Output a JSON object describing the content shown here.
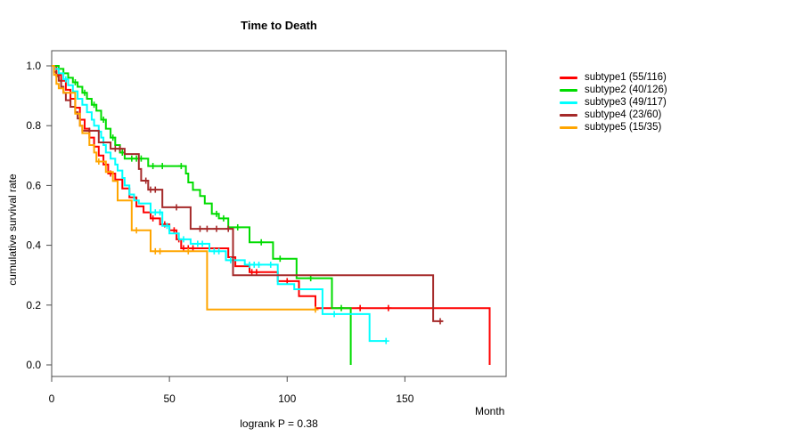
{
  "title": "Time to Death",
  "axes": {
    "ylabel": "cumulative survival rate",
    "xlabel": "Month"
  },
  "annotation": "logrank P = 0.38",
  "chart_data": {
    "type": "line",
    "variant": "kaplan-meier-step",
    "title": "Time to Death",
    "xlabel": "Month",
    "ylabel": "cumulative survival rate",
    "xlim": [
      0,
      193
    ],
    "ylim": [
      0.0,
      1.0
    ],
    "xticks": [
      "0",
      "50",
      "100",
      "150"
    ],
    "yticks": [
      "0.0",
      "0.2",
      "0.4",
      "0.6",
      "0.8",
      "1.0"
    ],
    "grid": false,
    "legend_position": "right",
    "annotation": "logrank P = 0.38",
    "series": [
      {
        "name": "subtype1 (55/116)",
        "color": "#FF0000",
        "end": 186,
        "steps": [
          [
            0,
            1.0
          ],
          [
            2,
            0.97
          ],
          [
            4,
            0.95
          ],
          [
            6,
            0.92
          ],
          [
            8,
            0.89
          ],
          [
            10,
            0.86
          ],
          [
            12,
            0.82
          ],
          [
            14,
            0.79
          ],
          [
            16,
            0.76
          ],
          [
            18,
            0.73
          ],
          [
            20,
            0.7
          ],
          [
            22,
            0.67
          ],
          [
            24,
            0.64
          ],
          [
            27,
            0.62
          ],
          [
            30,
            0.59
          ],
          [
            33,
            0.56
          ],
          [
            36,
            0.53
          ],
          [
            39,
            0.51
          ],
          [
            42,
            0.49
          ],
          [
            46,
            0.47
          ],
          [
            50,
            0.45
          ],
          [
            53,
            0.42
          ],
          [
            55,
            0.39
          ],
          [
            75,
            0.36
          ],
          [
            78,
            0.33
          ],
          [
            84,
            0.31
          ],
          [
            96,
            0.28
          ],
          [
            105,
            0.23
          ],
          [
            112,
            0.19
          ],
          [
            186,
            0.0
          ]
        ],
        "censors": [
          [
            25,
            0.64
          ],
          [
            43,
            0.49
          ],
          [
            48,
            0.47
          ],
          [
            52,
            0.45
          ],
          [
            54,
            0.42
          ],
          [
            56,
            0.39
          ],
          [
            58,
            0.39
          ],
          [
            60,
            0.39
          ],
          [
            85,
            0.31
          ],
          [
            87,
            0.31
          ],
          [
            100,
            0.28
          ],
          [
            131,
            0.19
          ],
          [
            143,
            0.19
          ]
        ]
      },
      {
        "name": "subtype2 (40/126)",
        "color": "#00DC00",
        "end": 127,
        "steps": [
          [
            0,
            1.0
          ],
          [
            3,
            0.99
          ],
          [
            5,
            0.975
          ],
          [
            7,
            0.96
          ],
          [
            9,
            0.945
          ],
          [
            11,
            0.93
          ],
          [
            13,
            0.91
          ],
          [
            15,
            0.89
          ],
          [
            17,
            0.87
          ],
          [
            19,
            0.85
          ],
          [
            21,
            0.82
          ],
          [
            23,
            0.79
          ],
          [
            25,
            0.76
          ],
          [
            27,
            0.735
          ],
          [
            29,
            0.71
          ],
          [
            31,
            0.69
          ],
          [
            41,
            0.665
          ],
          [
            57,
            0.64
          ],
          [
            58,
            0.61
          ],
          [
            60,
            0.585
          ],
          [
            63,
            0.565
          ],
          [
            65,
            0.54
          ],
          [
            68,
            0.505
          ],
          [
            71,
            0.49
          ],
          [
            75,
            0.46
          ],
          [
            84,
            0.41
          ],
          [
            94,
            0.355
          ],
          [
            104,
            0.29
          ],
          [
            119,
            0.19
          ],
          [
            127,
            0.0
          ]
        ],
        "censors": [
          [
            10,
            0.945
          ],
          [
            14,
            0.91
          ],
          [
            18,
            0.87
          ],
          [
            22,
            0.82
          ],
          [
            26,
            0.76
          ],
          [
            30,
            0.71
          ],
          [
            34,
            0.69
          ],
          [
            36,
            0.69
          ],
          [
            38,
            0.69
          ],
          [
            43,
            0.665
          ],
          [
            47,
            0.665
          ],
          [
            55,
            0.665
          ],
          [
            70,
            0.505
          ],
          [
            73,
            0.49
          ],
          [
            79,
            0.46
          ],
          [
            89,
            0.41
          ],
          [
            97,
            0.355
          ],
          [
            110,
            0.29
          ],
          [
            123,
            0.19
          ]
        ]
      },
      {
        "name": "subtype3 (49/117)",
        "color": "#00FFFF",
        "end": 142,
        "steps": [
          [
            0,
            1.0
          ],
          [
            1,
            0.99
          ],
          [
            3,
            0.975
          ],
          [
            5,
            0.955
          ],
          [
            7,
            0.935
          ],
          [
            9,
            0.915
          ],
          [
            11,
            0.89
          ],
          [
            13,
            0.87
          ],
          [
            15,
            0.845
          ],
          [
            17,
            0.82
          ],
          [
            18,
            0.8
          ],
          [
            20,
            0.78
          ],
          [
            21,
            0.76
          ],
          [
            22,
            0.735
          ],
          [
            23,
            0.71
          ],
          [
            25,
            0.69
          ],
          [
            27,
            0.67
          ],
          [
            28,
            0.65
          ],
          [
            30,
            0.625
          ],
          [
            31,
            0.6
          ],
          [
            33,
            0.57
          ],
          [
            35,
            0.55
          ],
          [
            37,
            0.54
          ],
          [
            42,
            0.51
          ],
          [
            47,
            0.465
          ],
          [
            50,
            0.44
          ],
          [
            54,
            0.42
          ],
          [
            59,
            0.405
          ],
          [
            67,
            0.38
          ],
          [
            74,
            0.35
          ],
          [
            82,
            0.335
          ],
          [
            96,
            0.27
          ],
          [
            103,
            0.253
          ],
          [
            115,
            0.17
          ],
          [
            135,
            0.08
          ]
        ],
        "censors": [
          [
            6,
            0.955
          ],
          [
            44,
            0.51
          ],
          [
            46,
            0.51
          ],
          [
            49,
            0.465
          ],
          [
            56,
            0.42
          ],
          [
            62,
            0.405
          ],
          [
            64,
            0.405
          ],
          [
            69,
            0.38
          ],
          [
            71,
            0.38
          ],
          [
            76,
            0.35
          ],
          [
            84,
            0.335
          ],
          [
            86,
            0.335
          ],
          [
            88,
            0.335
          ],
          [
            93,
            0.335
          ],
          [
            120,
            0.17
          ],
          [
            142,
            0.08
          ]
        ]
      },
      {
        "name": "subtype4 (23/60)",
        "color": "#A52A2A",
        "end": 166,
        "steps": [
          [
            0,
            1.0
          ],
          [
            1,
            0.98
          ],
          [
            2,
            0.965
          ],
          [
            3,
            0.95
          ],
          [
            4,
            0.93
          ],
          [
            5,
            0.91
          ],
          [
            6,
            0.885
          ],
          [
            8,
            0.863
          ],
          [
            10,
            0.845
          ],
          [
            11,
            0.824
          ],
          [
            12,
            0.8
          ],
          [
            13,
            0.783
          ],
          [
            20,
            0.744
          ],
          [
            25,
            0.723
          ],
          [
            31,
            0.705
          ],
          [
            37,
            0.655
          ],
          [
            38,
            0.616
          ],
          [
            41,
            0.586
          ],
          [
            47,
            0.527
          ],
          [
            59,
            0.455
          ],
          [
            77,
            0.3
          ],
          [
            162,
            0.146
          ]
        ],
        "censors": [
          [
            16,
            0.783
          ],
          [
            27,
            0.723
          ],
          [
            29,
            0.723
          ],
          [
            40,
            0.616
          ],
          [
            42,
            0.586
          ],
          [
            44,
            0.586
          ],
          [
            53,
            0.527
          ],
          [
            63,
            0.455
          ],
          [
            66,
            0.455
          ],
          [
            70,
            0.455
          ],
          [
            75,
            0.455
          ],
          [
            165,
            0.146
          ]
        ]
      },
      {
        "name": "subtype5 (15/35)",
        "color": "#FFA500",
        "end": 112,
        "steps": [
          [
            0,
            1.0
          ],
          [
            1,
            0.97
          ],
          [
            2,
            0.94
          ],
          [
            3,
            0.925
          ],
          [
            5,
            0.91
          ],
          [
            10,
            0.84
          ],
          [
            12,
            0.8
          ],
          [
            13,
            0.775
          ],
          [
            16,
            0.735
          ],
          [
            18,
            0.71
          ],
          [
            19,
            0.68
          ],
          [
            23,
            0.645
          ],
          [
            26,
            0.615
          ],
          [
            28,
            0.55
          ],
          [
            34,
            0.45
          ],
          [
            42,
            0.38
          ],
          [
            66,
            0.185
          ]
        ],
        "censors": [
          [
            20,
            0.68
          ],
          [
            36,
            0.45
          ],
          [
            44,
            0.38
          ],
          [
            46,
            0.38
          ],
          [
            58,
            0.38
          ],
          [
            112,
            0.185
          ]
        ]
      }
    ]
  }
}
